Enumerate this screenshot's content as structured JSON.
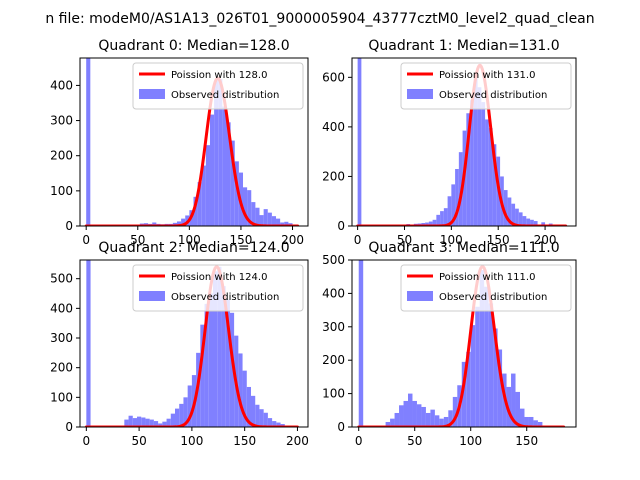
{
  "suptitle": "n file: modeM0/AS1A13_026T01_9000005904_43777cztM0_level2_quad_clean",
  "colors": {
    "fit": "#ff0000",
    "hist": "#8080ff",
    "axis": "#000000"
  },
  "chart_data": [
    {
      "type": "bar",
      "title": "Quadrant 0: Median=128.0",
      "xlim": [
        -6,
        215
      ],
      "ylim": [
        0,
        478
      ],
      "xticks": [
        0,
        50,
        100,
        150,
        200
      ],
      "yticks": [
        0,
        100,
        200,
        300,
        400
      ],
      "bin_width": 4,
      "bins": [
        {
          "x": 0,
          "y": 478
        },
        {
          "x": 40,
          "y": 2
        },
        {
          "x": 44,
          "y": 3
        },
        {
          "x": 48,
          "y": 4
        },
        {
          "x": 52,
          "y": 7
        },
        {
          "x": 56,
          "y": 8
        },
        {
          "x": 60,
          "y": 6
        },
        {
          "x": 64,
          "y": 10
        },
        {
          "x": 68,
          "y": 6
        },
        {
          "x": 72,
          "y": 5
        },
        {
          "x": 76,
          "y": 6
        },
        {
          "x": 80,
          "y": 6
        },
        {
          "x": 84,
          "y": 9
        },
        {
          "x": 88,
          "y": 13
        },
        {
          "x": 92,
          "y": 21
        },
        {
          "x": 96,
          "y": 30
        },
        {
          "x": 100,
          "y": 45
        },
        {
          "x": 104,
          "y": 83
        },
        {
          "x": 108,
          "y": 125
        },
        {
          "x": 112,
          "y": 172
        },
        {
          "x": 116,
          "y": 230
        },
        {
          "x": 120,
          "y": 317
        },
        {
          "x": 124,
          "y": 415
        },
        {
          "x": 128,
          "y": 418
        },
        {
          "x": 132,
          "y": 340
        },
        {
          "x": 136,
          "y": 295
        },
        {
          "x": 140,
          "y": 243
        },
        {
          "x": 144,
          "y": 184
        },
        {
          "x": 148,
          "y": 152
        },
        {
          "x": 152,
          "y": 110
        },
        {
          "x": 156,
          "y": 102
        },
        {
          "x": 160,
          "y": 68
        },
        {
          "x": 164,
          "y": 52
        },
        {
          "x": 168,
          "y": 31
        },
        {
          "x": 172,
          "y": 48
        },
        {
          "x": 176,
          "y": 38
        },
        {
          "x": 180,
          "y": 28
        },
        {
          "x": 184,
          "y": 21
        },
        {
          "x": 188,
          "y": 10
        },
        {
          "x": 192,
          "y": 12
        },
        {
          "x": 196,
          "y": 8
        }
      ],
      "poisson": {
        "mean": 128.0,
        "peak": 420,
        "xmin": 0,
        "xmax": 205
      },
      "legend": {
        "position": "upper right",
        "entries": [
          "Poission with 128.0",
          "Observed distribution"
        ]
      }
    },
    {
      "type": "bar",
      "title": "Quadrant 1: Median=131.0",
      "xlim": [
        -6,
        233
      ],
      "ylim": [
        0,
        678
      ],
      "xticks": [
        0,
        50,
        100,
        150,
        200
      ],
      "yticks": [
        0,
        200,
        400,
        600
      ],
      "bin_width": 4,
      "bins": [
        {
          "x": 0,
          "y": 678
        },
        {
          "x": 44,
          "y": 4
        },
        {
          "x": 48,
          "y": 6
        },
        {
          "x": 52,
          "y": 8
        },
        {
          "x": 56,
          "y": 6
        },
        {
          "x": 60,
          "y": 9
        },
        {
          "x": 64,
          "y": 10
        },
        {
          "x": 68,
          "y": 12
        },
        {
          "x": 72,
          "y": 14
        },
        {
          "x": 76,
          "y": 18
        },
        {
          "x": 80,
          "y": 25
        },
        {
          "x": 84,
          "y": 45
        },
        {
          "x": 88,
          "y": 60
        },
        {
          "x": 92,
          "y": 72
        },
        {
          "x": 96,
          "y": 120
        },
        {
          "x": 100,
          "y": 168
        },
        {
          "x": 104,
          "y": 230
        },
        {
          "x": 108,
          "y": 298
        },
        {
          "x": 112,
          "y": 385
        },
        {
          "x": 116,
          "y": 455
        },
        {
          "x": 120,
          "y": 508
        },
        {
          "x": 124,
          "y": 600
        },
        {
          "x": 128,
          "y": 560
        },
        {
          "x": 132,
          "y": 500
        },
        {
          "x": 136,
          "y": 430
        },
        {
          "x": 140,
          "y": 395
        },
        {
          "x": 144,
          "y": 330
        },
        {
          "x": 148,
          "y": 280
        },
        {
          "x": 152,
          "y": 200
        },
        {
          "x": 156,
          "y": 145
        },
        {
          "x": 160,
          "y": 115
        },
        {
          "x": 164,
          "y": 90
        },
        {
          "x": 168,
          "y": 70
        },
        {
          "x": 172,
          "y": 55
        },
        {
          "x": 176,
          "y": 40
        },
        {
          "x": 180,
          "y": 30
        },
        {
          "x": 184,
          "y": 25
        },
        {
          "x": 188,
          "y": 20
        },
        {
          "x": 196,
          "y": 15
        },
        {
          "x": 204,
          "y": 10
        },
        {
          "x": 212,
          "y": 6
        }
      ],
      "poisson": {
        "mean": 131.0,
        "peak": 648,
        "xmin": 0,
        "xmax": 222
      },
      "legend": {
        "position": "upper right",
        "entries": [
          "Poission with 131.0",
          "Observed distribution"
        ]
      }
    },
    {
      "type": "bar",
      "title": "Quadrant 2: Median=124.0",
      "xlim": [
        -6,
        210
      ],
      "ylim": [
        0,
        563
      ],
      "xticks": [
        0,
        50,
        100,
        150,
        200
      ],
      "yticks": [
        0,
        100,
        200,
        300,
        400,
        500
      ],
      "bin_width": 4,
      "bins": [
        {
          "x": 0,
          "y": 563
        },
        {
          "x": 32,
          "y": 5
        },
        {
          "x": 36,
          "y": 25
        },
        {
          "x": 40,
          "y": 38
        },
        {
          "x": 44,
          "y": 30
        },
        {
          "x": 48,
          "y": 35
        },
        {
          "x": 52,
          "y": 32
        },
        {
          "x": 56,
          "y": 28
        },
        {
          "x": 60,
          "y": 25
        },
        {
          "x": 64,
          "y": 20
        },
        {
          "x": 68,
          "y": 12
        },
        {
          "x": 72,
          "y": 18
        },
        {
          "x": 76,
          "y": 28
        },
        {
          "x": 80,
          "y": 45
        },
        {
          "x": 84,
          "y": 62
        },
        {
          "x": 88,
          "y": 78
        },
        {
          "x": 92,
          "y": 100
        },
        {
          "x": 96,
          "y": 140
        },
        {
          "x": 100,
          "y": 175
        },
        {
          "x": 104,
          "y": 250
        },
        {
          "x": 108,
          "y": 345
        },
        {
          "x": 112,
          "y": 415
        },
        {
          "x": 116,
          "y": 450
        },
        {
          "x": 120,
          "y": 525
        },
        {
          "x": 124,
          "y": 540
        },
        {
          "x": 128,
          "y": 475
        },
        {
          "x": 132,
          "y": 430
        },
        {
          "x": 136,
          "y": 385
        },
        {
          "x": 140,
          "y": 308
        },
        {
          "x": 144,
          "y": 248
        },
        {
          "x": 148,
          "y": 190
        },
        {
          "x": 152,
          "y": 135
        },
        {
          "x": 156,
          "y": 105
        },
        {
          "x": 160,
          "y": 75
        },
        {
          "x": 164,
          "y": 60
        },
        {
          "x": 168,
          "y": 48
        },
        {
          "x": 172,
          "y": 30
        },
        {
          "x": 176,
          "y": 20
        },
        {
          "x": 180,
          "y": 15
        },
        {
          "x": 184,
          "y": 10
        }
      ],
      "poisson": {
        "mean": 124.0,
        "peak": 540,
        "xmin": 0,
        "xmax": 200
      },
      "legend": {
        "position": "upper right",
        "entries": [
          "Poission with 124.0",
          "Observed distribution"
        ]
      }
    },
    {
      "type": "bar",
      "title": "Quadrant 3: Median=111.0",
      "xlim": [
        -6,
        194
      ],
      "ylim": [
        0,
        500
      ],
      "xticks": [
        0,
        50,
        100,
        150
      ],
      "yticks": [
        0,
        100,
        200,
        300,
        400,
        500
      ],
      "bin_width": 4,
      "bins": [
        {
          "x": 0,
          "y": 500
        },
        {
          "x": 20,
          "y": 3
        },
        {
          "x": 24,
          "y": 15
        },
        {
          "x": 28,
          "y": 25
        },
        {
          "x": 32,
          "y": 42
        },
        {
          "x": 36,
          "y": 65
        },
        {
          "x": 40,
          "y": 78
        },
        {
          "x": 44,
          "y": 100
        },
        {
          "x": 48,
          "y": 78
        },
        {
          "x": 52,
          "y": 68
        },
        {
          "x": 56,
          "y": 60
        },
        {
          "x": 60,
          "y": 42
        },
        {
          "x": 64,
          "y": 52
        },
        {
          "x": 68,
          "y": 35
        },
        {
          "x": 72,
          "y": 25
        },
        {
          "x": 76,
          "y": 30
        },
        {
          "x": 80,
          "y": 50
        },
        {
          "x": 84,
          "y": 90
        },
        {
          "x": 88,
          "y": 125
        },
        {
          "x": 92,
          "y": 195
        },
        {
          "x": 96,
          "y": 225
        },
        {
          "x": 100,
          "y": 305
        },
        {
          "x": 104,
          "y": 360
        },
        {
          "x": 108,
          "y": 470
        },
        {
          "x": 112,
          "y": 420
        },
        {
          "x": 116,
          "y": 370
        },
        {
          "x": 120,
          "y": 295
        },
        {
          "x": 124,
          "y": 232
        },
        {
          "x": 128,
          "y": 160
        },
        {
          "x": 132,
          "y": 120
        },
        {
          "x": 136,
          "y": 160
        },
        {
          "x": 140,
          "y": 105
        },
        {
          "x": 144,
          "y": 55
        },
        {
          "x": 148,
          "y": 30
        },
        {
          "x": 152,
          "y": 30
        },
        {
          "x": 156,
          "y": 20
        },
        {
          "x": 160,
          "y": 15
        }
      ],
      "poisson": {
        "mean": 111.0,
        "peak": 480,
        "xmin": 0,
        "xmax": 183
      },
      "legend": {
        "position": "upper right",
        "entries": [
          "Poission with 111.0",
          "Observed distribution"
        ]
      }
    }
  ]
}
